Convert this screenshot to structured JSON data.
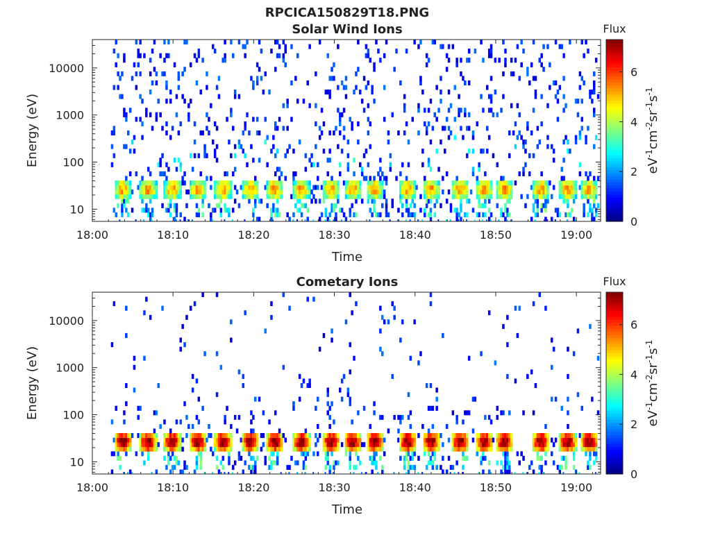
{
  "figure": {
    "filename": "RPCICA150829T18.PNG"
  },
  "chart_data": [
    {
      "type": "heatmap",
      "title": "Solar Wind Ions",
      "xlabel": "Time",
      "ylabel": "Energy (eV)",
      "x_ticks": [
        "18:00",
        "18:10",
        "18:20",
        "18:30",
        "18:40",
        "18:50",
        "19:00"
      ],
      "x_range_minutes": [
        0,
        63
      ],
      "y_scale": "log",
      "y_ticks": [
        "10",
        "100",
        "1000",
        "10000"
      ],
      "y_range_eV": [
        5.5,
        40000
      ],
      "colorbar": {
        "title": "Flux",
        "label": "eV-1cm-2sr-1s-1",
        "ticks": [
          "0",
          "2",
          "4",
          "6"
        ],
        "range": [
          0,
          7.3
        ],
        "colormap": "jet"
      },
      "bursts_start_minute": [
        2.8,
        5.9,
        8.9,
        12.1,
        15.2,
        18.6,
        21.6,
        24.9,
        28.6,
        31.3,
        34.0,
        38.1,
        41.0,
        44.6,
        47.6,
        50.1,
        54.6,
        57.9,
        60.6
      ],
      "core_band_eV": [
        17,
        42
      ],
      "core_flux_level": 4.8,
      "background": "sparse random counts across 10 eV - 30 keV, flux 0.5-2"
    },
    {
      "type": "heatmap",
      "title": "Cometary Ions",
      "xlabel": "Time",
      "ylabel": "Energy (eV)",
      "x_ticks": [
        "18:00",
        "18:10",
        "18:20",
        "18:30",
        "18:40",
        "18:50",
        "19:00"
      ],
      "x_range_minutes": [
        0,
        63
      ],
      "y_scale": "log",
      "y_ticks": [
        "10",
        "100",
        "1000",
        "10000"
      ],
      "y_range_eV": [
        5.5,
        40000
      ],
      "colorbar": {
        "title": "Flux",
        "label": "eV-1cm-2sr-1s-1",
        "ticks": [
          "0",
          "2",
          "4",
          "6"
        ],
        "range": [
          0,
          7.3
        ],
        "colormap": "jet"
      },
      "bursts_start_minute": [
        2.8,
        5.9,
        8.9,
        12.1,
        15.2,
        18.6,
        21.6,
        24.9,
        28.6,
        31.3,
        34.0,
        38.1,
        41.0,
        44.6,
        47.6,
        50.1,
        54.6,
        57.9,
        60.6
      ],
      "core_band_eV": [
        17,
        42
      ],
      "core_flux_level": 6.6,
      "background": "sparse scattered counts above 100 eV, flux 0.5-1.5"
    }
  ]
}
